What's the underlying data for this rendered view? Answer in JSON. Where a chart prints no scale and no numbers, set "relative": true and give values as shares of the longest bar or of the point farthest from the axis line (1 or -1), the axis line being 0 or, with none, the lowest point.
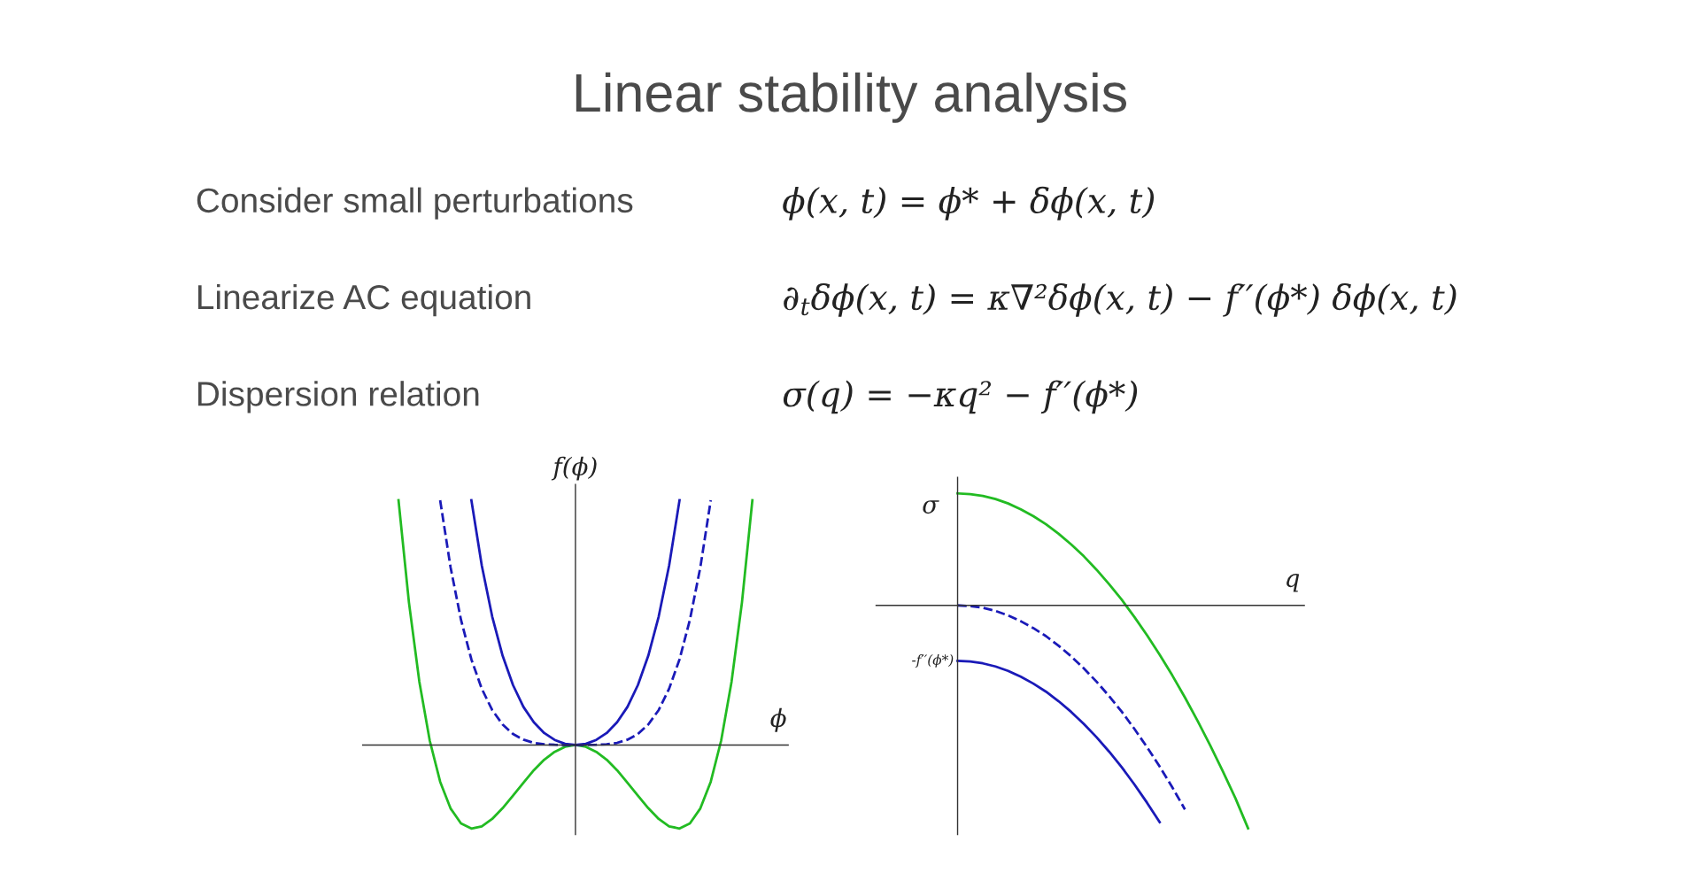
{
  "chart_data": [
    {
      "type": "line",
      "title": "Linear stability analysis",
      "relative": true,
      "ylabel": "f(ϕ)",
      "xlabel": "ϕ",
      "annotations": [
        "Consider small perturbations",
        "ϕ(x, t) = ϕ* + δϕ(x, t)",
        "Linearize AC equation",
        "∂$_{t}$δϕ(x, t) = κ∇²δϕ(x, t) − f′′(ϕ*) δϕ(x, t)",
        "Dispersion relation",
        "σ(q) = −κq² − f′′(ϕ*)"
      ],
      "categories": [
        null,
        null,
        null,
        null,
        null,
        null,
        null,
        null,
        null,
        null,
        null,
        null,
        null,
        null,
        null,
        null,
        null,
        null,
        null,
        null,
        null,
        null,
        null,
        null,
        null,
        null,
        null,
        null,
        null,
        null,
        null,
        null,
        null,
        null,
        null,
        null,
        null,
        null,
        null,
        null,
        null
      ],
      "series": [
        {
          "color": "#22bb22",
          "line_style": "solid",
          "values": [
            null,
            null,
            null,
            1.0,
            0.583,
            0.259,
            0.018,
            -0.15,
            -0.259,
            -0.32,
            -0.341,
            -0.332,
            -0.302,
            -0.258,
            -0.207,
            -0.154,
            -0.103,
            -0.06,
            -0.028,
            -0.007,
            0,
            -0.007,
            -0.028,
            -0.06,
            -0.103,
            -0.154,
            -0.207,
            -0.258,
            -0.302,
            -0.332,
            -0.341,
            -0.32,
            -0.259,
            -0.15,
            0.018,
            0.259,
            0.583,
            1.0,
            null,
            null,
            null
          ]
        },
        {
          "color": "#1a1ab8",
          "line_style": "solid",
          "values": [
            null,
            null,
            null,
            null,
            null,
            null,
            null,
            null,
            null,
            null,
            1.0,
            0.733,
            0.525,
            0.365,
            0.245,
            0.156,
            0.093,
            0.049,
            0.021,
            0.005,
            0,
            0.005,
            0.021,
            0.049,
            0.093,
            0.156,
            0.245,
            0.365,
            0.525,
            0.733,
            1.0,
            null,
            null,
            null,
            null,
            null,
            null,
            null,
            null,
            null,
            null
          ]
        },
        {
          "color": "#1a1ab8",
          "line_style": "dashed",
          "values": [
            null,
            null,
            null,
            null,
            null,
            null,
            null,
            1.0,
            0.726,
            0.512,
            0.35,
            0.23,
            0.143,
            0.084,
            0.045,
            0.022,
            0.009,
            0.003,
            0.001,
            0.0,
            0,
            0.0,
            0.001,
            0.003,
            0.009,
            0.022,
            0.045,
            0.084,
            0.143,
            0.23,
            0.35,
            0.512,
            0.726,
            1.0,
            null,
            null,
            null,
            null,
            null,
            null,
            null
          ]
        }
      ]
    },
    {
      "type": "line",
      "relative": true,
      "ylabel": "σ",
      "xlabel": "q",
      "annotations": [
        "-f′′(ϕ*)"
      ],
      "categories": [
        null,
        null,
        null,
        null,
        null,
        null,
        null,
        null,
        null,
        null,
        null,
        null,
        null,
        null,
        null,
        null,
        null,
        null,
        null,
        null,
        null,
        null,
        null,
        null,
        null,
        null,
        null,
        null,
        null,
        null,
        null,
        null,
        null,
        null
      ],
      "series": [
        {
          "color": "#22bb22",
          "line_style": "solid",
          "values": [
            null,
            null,
            null,
            null,
            null,
            null,
            0.502,
            0.499,
            0.491,
            0.477,
            0.457,
            0.431,
            0.4,
            0.364,
            0.321,
            0.273,
            0.22,
            0.16,
            0.095,
            0.025,
            -0.052,
            -0.134,
            -0.221,
            -0.314,
            -0.413,
            -0.518,
            -0.628,
            -0.744,
            -0.865,
            -1.0,
            null,
            null,
            null,
            null
          ]
        },
        {
          "color": "#1a1ab8",
          "line_style": "dashed",
          "values": [
            null,
            null,
            null,
            null,
            null,
            null,
            0,
            -0.003,
            -0.011,
            -0.025,
            -0.045,
            -0.071,
            -0.102,
            -0.138,
            -0.181,
            -0.229,
            -0.283,
            -0.342,
            -0.407,
            -0.477,
            -0.554,
            -0.636,
            -0.723,
            -0.816,
            -0.915,
            null,
            null,
            null,
            null,
            null,
            null,
            null,
            null,
            null
          ]
        },
        {
          "color": "#1a1ab8",
          "line_style": "solid",
          "values": [
            null,
            null,
            null,
            null,
            null,
            null,
            -0.249,
            -0.252,
            -0.26,
            -0.274,
            -0.294,
            -0.32,
            -0.351,
            -0.387,
            -0.43,
            -0.478,
            -0.532,
            -0.591,
            -0.656,
            -0.726,
            -0.803,
            -0.885,
            -0.972,
            null,
            null,
            null,
            null,
            null,
            null,
            null,
            null,
            null,
            null,
            null
          ]
        }
      ]
    }
  ]
}
